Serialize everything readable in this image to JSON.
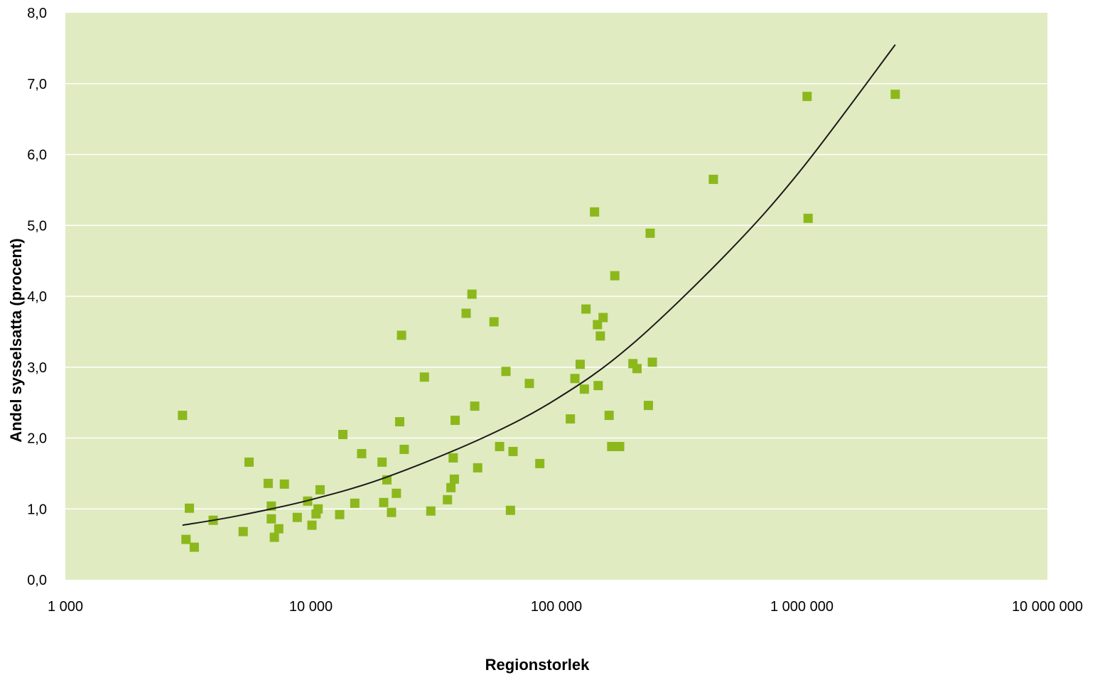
{
  "chart_data": {
    "type": "scatter",
    "title": "",
    "xlabel": "Regionstorlek",
    "ylabel": "Andel sysselsatta (procent)",
    "x_scale": "log",
    "xlim": [
      1000,
      10000000
    ],
    "ylim": [
      0,
      8
    ],
    "x_ticks": [
      1000,
      10000,
      100000,
      1000000,
      10000000
    ],
    "x_tick_labels": [
      "1 000",
      "10 000",
      "100 000",
      "1 000 000",
      "10 000 000"
    ],
    "y_ticks": [
      0,
      1,
      2,
      3,
      4,
      5,
      6,
      7,
      8
    ],
    "y_tick_labels": [
      "0,0",
      "1,0",
      "2,0",
      "3,0",
      "4,0",
      "5,0",
      "6,0",
      "7,0",
      "8,0"
    ],
    "grid": true,
    "legend": "none",
    "colors": {
      "plot_background": "#e0ebc1",
      "grid": "#ffffff",
      "marker": "#8cb81c",
      "trendline": "#1a1a1a"
    },
    "series": [
      {
        "marker": "square",
        "points": [
          [
            3000,
            2.32
          ],
          [
            3100,
            0.57
          ],
          [
            3200,
            1.01
          ],
          [
            3350,
            0.46
          ],
          [
            4000,
            0.84
          ],
          [
            5300,
            0.68
          ],
          [
            5600,
            1.66
          ],
          [
            6700,
            1.36
          ],
          [
            6900,
            1.04
          ],
          [
            6900,
            0.86
          ],
          [
            7100,
            0.6
          ],
          [
            7400,
            0.72
          ],
          [
            7800,
            1.35
          ],
          [
            8800,
            0.88
          ],
          [
            9700,
            1.11
          ],
          [
            10100,
            0.77
          ],
          [
            10500,
            0.93
          ],
          [
            10700,
            1.0
          ],
          [
            10900,
            1.27
          ],
          [
            13100,
            0.92
          ],
          [
            13500,
            2.05
          ],
          [
            15100,
            1.08
          ],
          [
            16100,
            1.78
          ],
          [
            19500,
            1.66
          ],
          [
            19800,
            1.09
          ],
          [
            20400,
            1.41
          ],
          [
            21300,
            0.95
          ],
          [
            22300,
            1.22
          ],
          [
            23000,
            2.23
          ],
          [
            23400,
            3.45
          ],
          [
            24000,
            1.84
          ],
          [
            29000,
            2.86
          ],
          [
            30800,
            0.97
          ],
          [
            36000,
            1.13
          ],
          [
            37200,
            1.3
          ],
          [
            38000,
            1.72
          ],
          [
            38400,
            1.42
          ],
          [
            38700,
            2.25
          ],
          [
            42900,
            3.76
          ],
          [
            45300,
            4.03
          ],
          [
            46500,
            2.45
          ],
          [
            47800,
            1.58
          ],
          [
            55700,
            3.64
          ],
          [
            58700,
            1.88
          ],
          [
            62300,
            2.94
          ],
          [
            65000,
            0.98
          ],
          [
            66600,
            1.81
          ],
          [
            77600,
            2.77
          ],
          [
            85600,
            1.64
          ],
          [
            114000,
            2.27
          ],
          [
            119000,
            2.84
          ],
          [
            125000,
            3.04
          ],
          [
            130000,
            2.69
          ],
          [
            132000,
            3.82
          ],
          [
            143000,
            5.19
          ],
          [
            147000,
            3.6
          ],
          [
            148000,
            2.74
          ],
          [
            151000,
            3.44
          ],
          [
            155000,
            3.7
          ],
          [
            164000,
            2.32
          ],
          [
            168000,
            1.88
          ],
          [
            173000,
            4.29
          ],
          [
            181000,
            1.88
          ],
          [
            205000,
            3.05
          ],
          [
            213000,
            2.98
          ],
          [
            237000,
            2.46
          ],
          [
            241000,
            4.89
          ],
          [
            246000,
            3.07
          ],
          [
            436000,
            5.65
          ],
          [
            1050000,
            6.82
          ],
          [
            1060000,
            5.1
          ],
          [
            2400000,
            6.85
          ]
        ]
      }
    ],
    "trendline": {
      "type": "power-fit curve",
      "x": [
        3000,
        5000,
        10000,
        20000,
        50000,
        100000,
        200000,
        500000,
        1000000,
        2400000
      ],
      "y": [
        0.77,
        0.9,
        1.13,
        1.44,
        2.0,
        2.55,
        3.3,
        4.62,
        5.8,
        7.55
      ]
    }
  }
}
